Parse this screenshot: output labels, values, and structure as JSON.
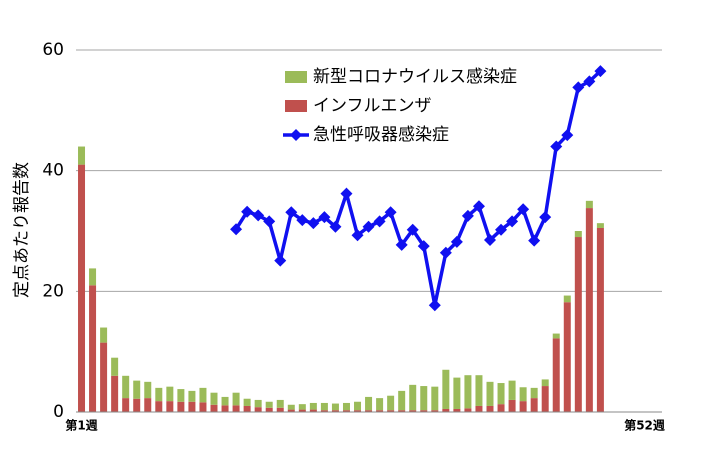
{
  "chart_data": {
    "type": "bar-line",
    "y_label": "定点あたり報告数",
    "categories": [
      "第1週",
      null,
      null,
      null,
      null,
      null,
      null,
      null,
      null,
      null,
      null,
      null,
      null,
      null,
      null,
      null,
      null,
      null,
      null,
      null,
      null,
      null,
      null,
      null,
      null,
      null,
      null,
      null,
      null,
      null,
      null,
      null,
      null,
      null,
      null,
      null,
      null,
      null,
      null,
      null,
      null,
      null,
      null,
      null,
      null,
      null,
      null,
      null,
      null,
      null,
      null,
      "第52週"
    ],
    "series": [
      {
        "name": "新型コロナウイルス感染症",
        "type": "bar",
        "color": "#9bbb59",
        "values": [
          3,
          2.8,
          2.5,
          3,
          3.7,
          3,
          2.7,
          2.2,
          2.4,
          2.1,
          1.8,
          2.4,
          2,
          1.4,
          2.1,
          1.2,
          1.2,
          1,
          1.3,
          0.8,
          0.9,
          1.1,
          1.2,
          1.1,
          1.2,
          1.4,
          2.2,
          2,
          2.4,
          3.2,
          4.2,
          4,
          3.9,
          6.5,
          5.2,
          5.5,
          5.1,
          4,
          3.5,
          3.2,
          2.3,
          1.7,
          1.1,
          0.8,
          1.1,
          1,
          1.2,
          0.8,
          null,
          null,
          null,
          null
        ]
      },
      {
        "name": "インフルエンザ",
        "type": "bar",
        "color": "#c0504d",
        "values": [
          41,
          21,
          11.5,
          6,
          2.3,
          2.2,
          2.3,
          1.8,
          1.8,
          1.7,
          1.7,
          1.6,
          1.2,
          1.1,
          1.1,
          1.0,
          0.8,
          0.7,
          0.7,
          0.4,
          0.4,
          0.4,
          0.3,
          0.3,
          0.3,
          0.3,
          0.3,
          0.3,
          0.3,
          0.3,
          0.3,
          0.3,
          0.3,
          0.5,
          0.5,
          0.6,
          1.0,
          1.0,
          1.3,
          2.0,
          1.8,
          2.3,
          4.3,
          12.2,
          18.2,
          29,
          33.8,
          30.5,
          null,
          null,
          null,
          null
        ]
      },
      {
        "name": "急性呼吸器感染症",
        "type": "line",
        "color": "#1010f0",
        "values": [
          null,
          null,
          null,
          null,
          null,
          null,
          null,
          null,
          null,
          null,
          null,
          null,
          null,
          null,
          30.3,
          33.2,
          32.6,
          31.6,
          25.1,
          33.1,
          31.8,
          31.3,
          32.3,
          30.7,
          36.2,
          29.3,
          30.7,
          31.6,
          33.1,
          27.7,
          30.2,
          27.5,
          17.7,
          26.4,
          28.2,
          32.5,
          34.1,
          28.5,
          30.2,
          31.6,
          33.6,
          28.4,
          32.3,
          44,
          45.9,
          53.8,
          54.8,
          56.5,
          null,
          null,
          null,
          null
        ]
      }
    ],
    "ylim": [
      0,
      60
    ],
    "yticks": [
      0,
      20,
      40,
      60
    ],
    "grid": true
  }
}
